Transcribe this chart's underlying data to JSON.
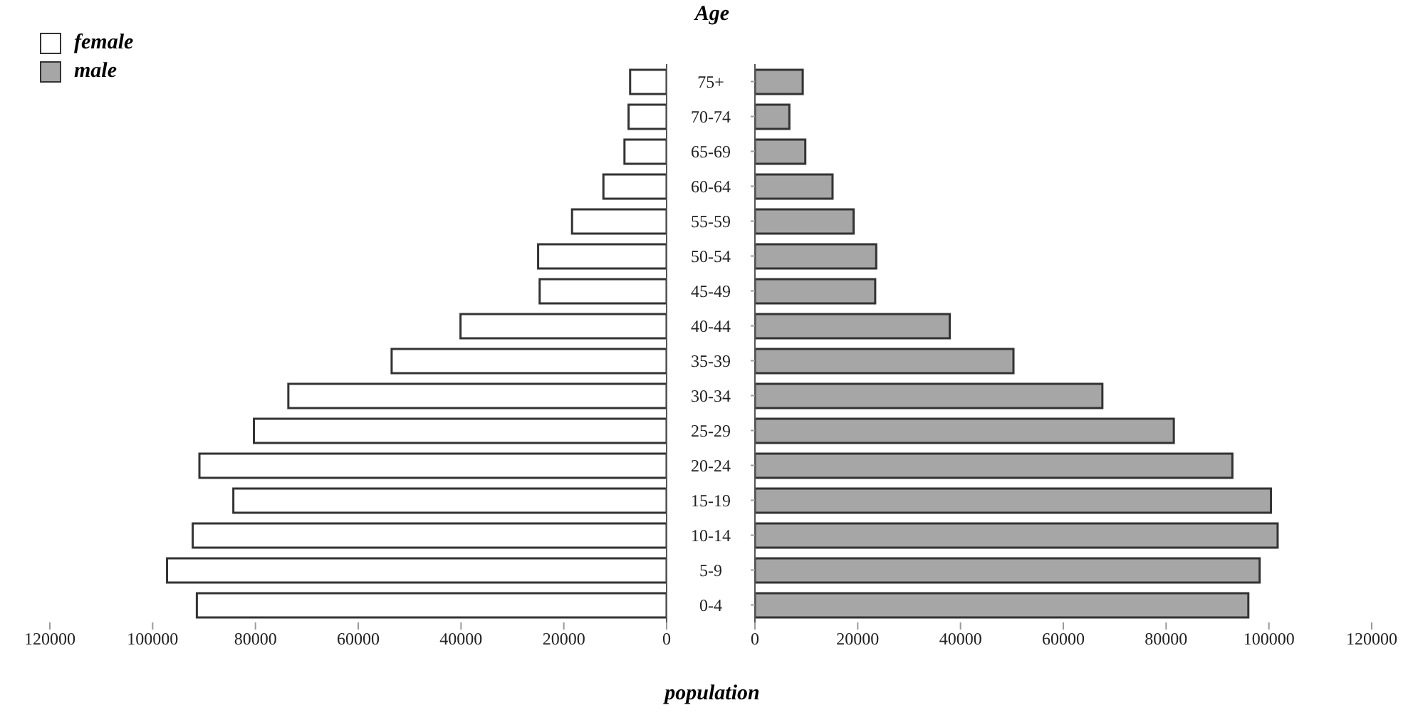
{
  "chart_data": [
    {
      "type": "bar",
      "orientation": "horizontal",
      "series": [
        {
          "name": "female",
          "color": "#ffffff",
          "values": [
            7100,
            7400,
            8200,
            12300,
            18400,
            25000,
            24700,
            40100,
            53500,
            73600,
            80300,
            90900,
            84300,
            92200,
            97200,
            91400
          ]
        }
      ],
      "xlim": [
        120000,
        0
      ],
      "xticks": [
        120000,
        100000,
        80000,
        60000,
        40000,
        20000,
        0
      ],
      "legend": "top left",
      "grid": false
    },
    {
      "type": "bar",
      "orientation": "horizontal",
      "title": "Age",
      "xlabel": "population",
      "categories": [
        "75+",
        "70-74",
        "65-69",
        "60-64",
        "55-59",
        "50-54",
        "45-49",
        "40-44",
        "35-39",
        "30-34",
        "25-29",
        "20-24",
        "15-19",
        "10-14",
        "5-9",
        "0-4"
      ],
      "series": [
        {
          "name": "male",
          "color": "#a6a6a6",
          "values": [
            9300,
            6700,
            9800,
            15100,
            19200,
            23600,
            23400,
            37900,
            50300,
            67600,
            81500,
            92900,
            100400,
            101700,
            98200,
            96000
          ]
        }
      ],
      "xlim": [
        0,
        120000
      ],
      "xticks": [
        0,
        20000,
        40000,
        60000,
        80000,
        100000,
        120000
      ],
      "grid": false
    }
  ]
}
